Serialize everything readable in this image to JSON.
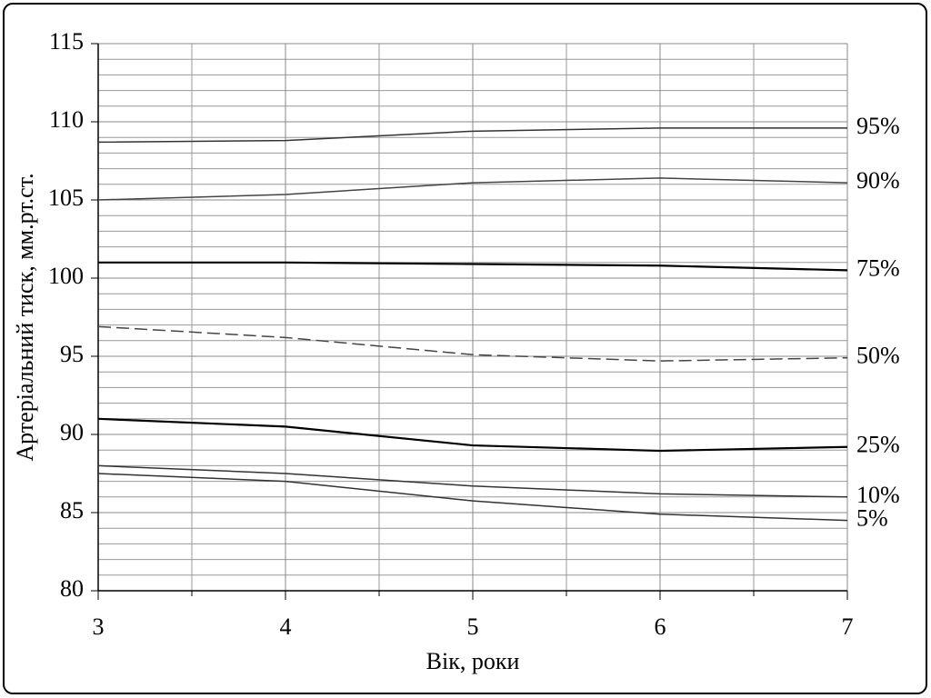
{
  "chart_data": {
    "type": "line",
    "x_label": "Вік, роки",
    "y_label": "Артеріальний тиск, мм.рт.ст.",
    "x": [
      3,
      4,
      5,
      6,
      7
    ],
    "xlim": [
      3,
      7
    ],
    "xticks": [
      3,
      4,
      5,
      6,
      7
    ],
    "ylim": [
      80,
      115
    ],
    "yticks": [
      80,
      85,
      90,
      95,
      100,
      105,
      110,
      115
    ],
    "grid": true,
    "series": [
      {
        "name": "95%",
        "color": "#333333",
        "values": [
          108.7,
          108.8,
          109.4,
          109.6,
          109.6
        ]
      },
      {
        "name": "90%",
        "color": "#444444",
        "values": [
          105.0,
          105.35,
          106.1,
          106.4,
          106.1
        ]
      },
      {
        "name": "75%",
        "color": "#000000",
        "values": [
          101.0,
          101.0,
          100.9,
          100.8,
          100.5
        ]
      },
      {
        "name": "50%",
        "color": "#444444",
        "line_style": "dashed",
        "values": [
          96.9,
          96.2,
          95.1,
          94.7,
          94.9
        ]
      },
      {
        "name": "25%",
        "color": "#000000",
        "values": [
          91.0,
          90.5,
          89.3,
          88.95,
          89.2
        ]
      },
      {
        "name": "10%",
        "color": "#333333",
        "values": [
          88.0,
          87.5,
          86.7,
          86.2,
          86.0
        ]
      },
      {
        "name": "5%",
        "color": "#333333",
        "values": [
          87.5,
          87.0,
          85.75,
          84.9,
          84.5
        ]
      }
    ]
  }
}
